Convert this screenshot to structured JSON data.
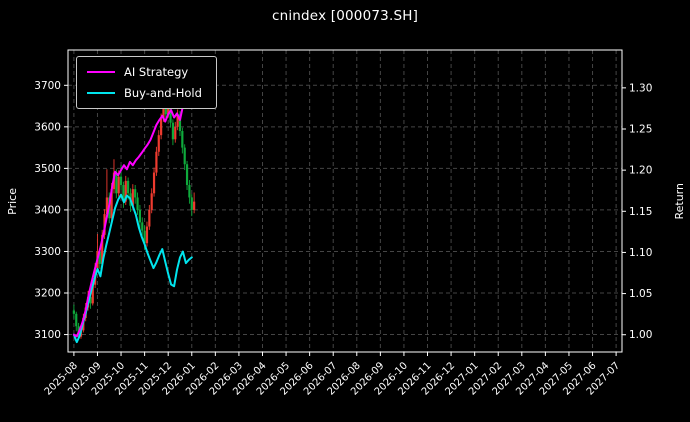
{
  "title": "cnindex [000073.SH]",
  "legend": {
    "position": "upper left",
    "items": [
      {
        "label": "AI Strategy",
        "color": "#ff00ff"
      },
      {
        "label": "Buy-and-Hold",
        "color": "#00e5ee"
      }
    ]
  },
  "colors": {
    "background": "#000000",
    "text": "#ffffff",
    "spine": "#ffffff",
    "grid": "#454545",
    "candle_up": "#ef3b2f",
    "candle_down": "#0faa3c"
  },
  "chart_data": {
    "type": "mixed",
    "subtypes": [
      "candlestick",
      "line"
    ],
    "title": "cnindex [000073.SH]",
    "xlabel": "",
    "grid": {
      "on": true,
      "style": "dashed"
    },
    "legend_position": "upper left",
    "x_axis": {
      "unit": "month",
      "range": [
        -0.25,
        23.25
      ],
      "tick_values": [
        0,
        1,
        2,
        3,
        4,
        5,
        6,
        7,
        8,
        9,
        10,
        11,
        12,
        13,
        14,
        15,
        16,
        17,
        18,
        19,
        20,
        21,
        22,
        23
      ],
      "tick_labels": [
        "2025-08",
        "2025-09",
        "2025-10",
        "2025-11",
        "2025-12",
        "2026-01",
        "2026-02",
        "2026-03",
        "2026-04",
        "2026-05",
        "2026-06",
        "2026-07",
        "2026-08",
        "2026-09",
        "2026-10",
        "2026-11",
        "2026-12",
        "2027-01",
        "2027-02",
        "2027-03",
        "2027-04",
        "2027-05",
        "2027-06",
        "2027-07"
      ]
    },
    "left_axis": {
      "label": "Price",
      "range": [
        3058,
        3785
      ],
      "tick_values": [
        3100,
        3200,
        3300,
        3400,
        3500,
        3600,
        3700
      ],
      "tick_labels": [
        "3100",
        "3200",
        "3300",
        "3400",
        "3500",
        "3600",
        "3700"
      ]
    },
    "right_axis": {
      "label": "Return",
      "range": [
        0.979,
        1.346
      ],
      "tick_values": [
        1.0,
        1.05,
        1.1,
        1.15,
        1.2,
        1.25,
        1.3
      ],
      "tick_labels": [
        "1.00",
        "1.05",
        "1.10",
        "1.15",
        "1.20",
        "1.25",
        "1.30"
      ]
    },
    "candles": {
      "name": "cnindex OHLC",
      "axis": "left",
      "up_color": "#ef3b2f",
      "down_color": "#0faa3c",
      "columns": [
        "month",
        "open",
        "high",
        "low",
        "close"
      ],
      "data": [
        [
          0.0,
          3158,
          3172,
          3138,
          3150
        ],
        [
          0.1,
          3150,
          3155,
          3108,
          3120
        ],
        [
          0.2,
          3120,
          3128,
          3088,
          3095
        ],
        [
          0.3,
          3095,
          3122,
          3090,
          3110
        ],
        [
          0.4,
          3110,
          3150,
          3105,
          3140
        ],
        [
          0.5,
          3140,
          3176,
          3132,
          3165
        ],
        [
          0.6,
          3165,
          3205,
          3158,
          3190
        ],
        [
          0.7,
          3190,
          3198,
          3162,
          3175
        ],
        [
          0.8,
          3175,
          3232,
          3170,
          3220
        ],
        [
          0.9,
          3220,
          3272,
          3212,
          3260
        ],
        [
          1.0,
          3260,
          3342,
          3252,
          3300
        ],
        [
          1.1,
          3300,
          3308,
          3258,
          3270
        ],
        [
          1.2,
          3270,
          3352,
          3265,
          3340
        ],
        [
          1.3,
          3340,
          3402,
          3330,
          3390
        ],
        [
          1.4,
          3390,
          3498,
          3382,
          3430
        ],
        [
          1.5,
          3430,
          3442,
          3368,
          3380
        ],
        [
          1.6,
          3380,
          3465,
          3372,
          3450
        ],
        [
          1.7,
          3450,
          3522,
          3440,
          3490
        ],
        [
          1.8,
          3490,
          3498,
          3428,
          3440
        ],
        [
          1.9,
          3440,
          3495,
          3432,
          3480
        ],
        [
          2.0,
          3480,
          3508,
          3448,
          3460
        ],
        [
          2.1,
          3460,
          3468,
          3405,
          3420
        ],
        [
          2.2,
          3420,
          3482,
          3412,
          3470
        ],
        [
          2.3,
          3470,
          3478,
          3425,
          3440
        ],
        [
          2.4,
          3440,
          3452,
          3395,
          3410
        ],
        [
          2.5,
          3410,
          3462,
          3402,
          3450
        ],
        [
          2.6,
          3450,
          3460,
          3415,
          3430
        ],
        [
          2.7,
          3430,
          3442,
          3388,
          3400
        ],
        [
          2.8,
          3400,
          3412,
          3355,
          3370
        ],
        [
          2.9,
          3370,
          3382,
          3338,
          3350
        ],
        [
          3.0,
          3350,
          3362,
          3305,
          3320
        ],
        [
          3.1,
          3320,
          3372,
          3312,
          3360
        ],
        [
          3.2,
          3360,
          3412,
          3352,
          3400
        ],
        [
          3.3,
          3400,
          3452,
          3392,
          3440
        ],
        [
          3.4,
          3440,
          3502,
          3432,
          3490
        ],
        [
          3.5,
          3490,
          3552,
          3482,
          3540
        ],
        [
          3.6,
          3540,
          3592,
          3530,
          3580
        ],
        [
          3.7,
          3580,
          3632,
          3570,
          3620
        ],
        [
          3.8,
          3620,
          3695,
          3612,
          3660
        ],
        [
          3.9,
          3660,
          3668,
          3615,
          3630
        ],
        [
          4.0,
          3630,
          3672,
          3622,
          3655
        ],
        [
          4.1,
          3655,
          3662,
          3598,
          3610
        ],
        [
          4.2,
          3610,
          3618,
          3556,
          3570
        ],
        [
          4.3,
          3570,
          3612,
          3562,
          3600
        ],
        [
          4.4,
          3600,
          3642,
          3592,
          3630
        ],
        [
          4.5,
          3630,
          3638,
          3578,
          3590
        ],
        [
          4.6,
          3590,
          3598,
          3536,
          3550
        ],
        [
          4.7,
          3550,
          3558,
          3496,
          3510
        ],
        [
          4.8,
          3510,
          3518,
          3448,
          3460
        ],
        [
          4.9,
          3460,
          3472,
          3415,
          3430
        ],
        [
          5.0,
          3430,
          3438,
          3385,
          3400
        ],
        [
          5.1,
          3400,
          3442,
          3392,
          3420
        ]
      ]
    },
    "series": [
      {
        "name": "AI Strategy",
        "axis": "right",
        "color": "#ff00ff",
        "x": [
          0,
          0.125,
          0.25,
          0.375,
          0.5,
          0.625,
          0.75,
          0.875,
          1,
          1.125,
          1.25,
          1.375,
          1.5,
          1.625,
          1.75,
          1.875,
          2,
          2.125,
          2.25,
          2.375,
          2.5,
          2.625,
          2.75,
          2.875,
          3,
          3.125,
          3.25,
          3.375,
          3.5,
          3.625,
          3.75,
          3.875,
          4,
          4.125,
          4.25,
          4.375,
          4.5,
          4.625
        ],
        "values": [
          1.0,
          0.998,
          1.006,
          1.016,
          1.03,
          1.048,
          1.064,
          1.078,
          1.092,
          1.106,
          1.122,
          1.14,
          1.158,
          1.18,
          1.198,
          1.194,
          1.2,
          1.206,
          1.201,
          1.21,
          1.206,
          1.212,
          1.216,
          1.221,
          1.226,
          1.231,
          1.237,
          1.246,
          1.255,
          1.261,
          1.266,
          1.259,
          1.268,
          1.273,
          1.264,
          1.269,
          1.261,
          1.278
        ]
      },
      {
        "name": "Buy-and-Hold",
        "axis": "right",
        "color": "#00e5ee",
        "x": [
          0,
          0.125,
          0.25,
          0.375,
          0.5,
          0.625,
          0.75,
          0.875,
          1,
          1.125,
          1.25,
          1.375,
          1.5,
          1.625,
          1.75,
          1.875,
          2,
          2.125,
          2.25,
          2.375,
          2.5,
          2.625,
          2.75,
          2.875,
          3,
          3.125,
          3.25,
          3.375,
          3.5,
          3.625,
          3.75,
          3.875,
          4,
          4.125,
          4.25,
          4.375,
          4.5,
          4.625,
          4.75,
          4.875,
          5
        ],
        "values": [
          1.0,
          0.991,
          0.999,
          1.013,
          1.026,
          1.041,
          1.055,
          1.068,
          1.08,
          1.071,
          1.093,
          1.109,
          1.124,
          1.139,
          1.154,
          1.164,
          1.17,
          1.161,
          1.169,
          1.166,
          1.156,
          1.146,
          1.131,
          1.119,
          1.11,
          1.099,
          1.09,
          1.081,
          1.088,
          1.097,
          1.104,
          1.089,
          1.074,
          1.061,
          1.059,
          1.079,
          1.094,
          1.101,
          1.087,
          1.091,
          1.094
        ]
      }
    ]
  }
}
